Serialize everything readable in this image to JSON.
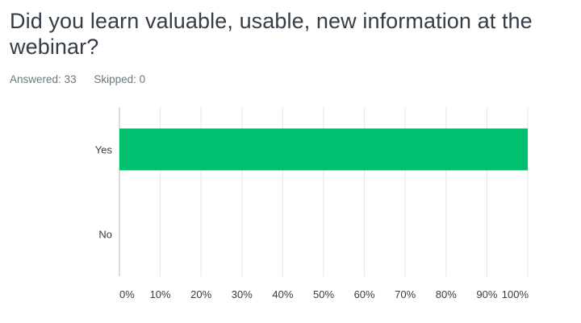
{
  "question": {
    "title": "Did you learn valuable, usable, new information at the webinar?"
  },
  "stats": {
    "answered_label": "Answered:",
    "answered_value": "33",
    "skipped_label": "Skipped:",
    "skipped_value": "0"
  },
  "colors": {
    "bar": "#00bf6f",
    "grid": "#e3e6e8",
    "axis": "#b7bdc1",
    "text": "#333e48",
    "muted": "#6b787f"
  },
  "chart_data": {
    "type": "bar",
    "orientation": "horizontal",
    "categories": [
      "Yes",
      "No"
    ],
    "values": [
      100,
      0
    ],
    "value_unit": "%",
    "title": "",
    "xlabel": "",
    "ylabel": "",
    "xlim": [
      0,
      100
    ],
    "tick_labels": [
      "0%",
      "10%",
      "20%",
      "30%",
      "40%",
      "50%",
      "60%",
      "70%",
      "80%",
      "90%",
      "100%"
    ],
    "grid": true,
    "legend": "none"
  }
}
